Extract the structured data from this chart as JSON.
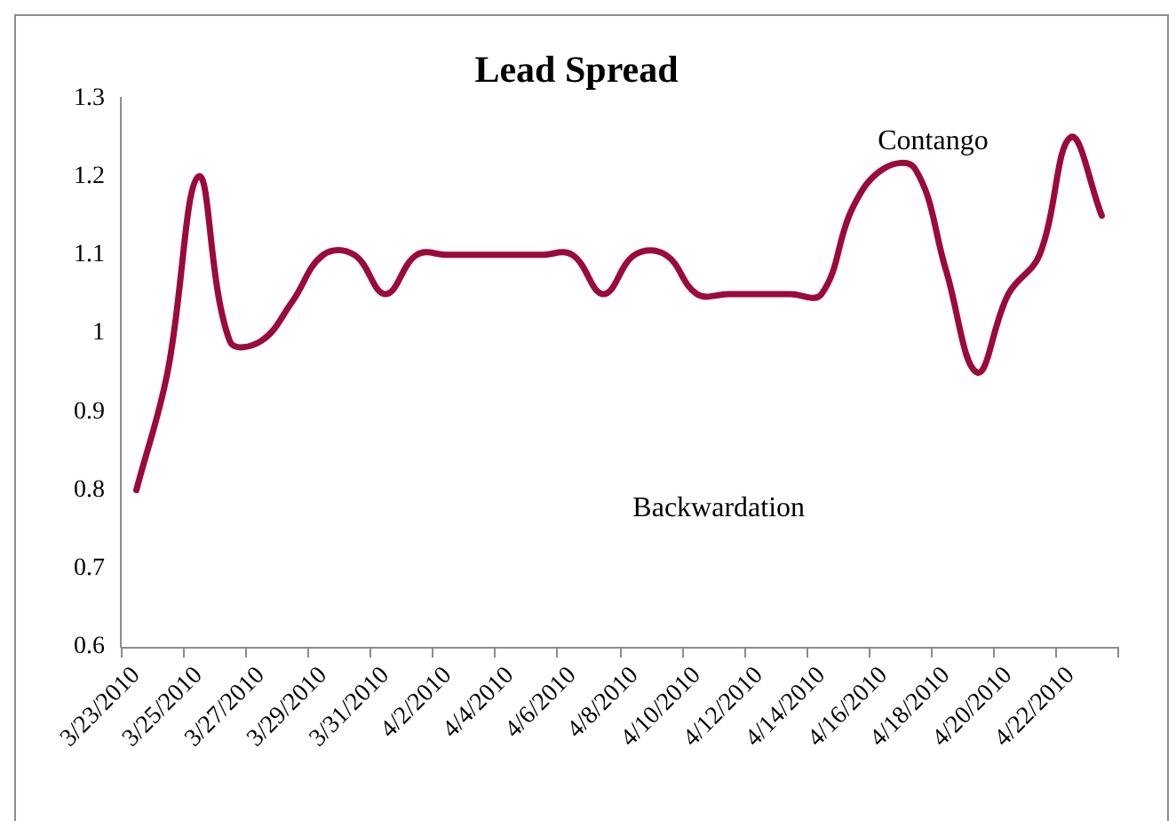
{
  "chart_data": {
    "type": "line",
    "title": "Lead Spread",
    "categories": [
      "3/23/2010",
      null,
      "3/25/2010",
      null,
      "3/27/2010",
      null,
      "3/29/2010",
      null,
      "3/31/2010",
      null,
      "4/2/2010",
      null,
      "4/4/2010",
      null,
      "4/6/2010",
      null,
      "4/8/2010",
      null,
      "4/10/2010",
      null,
      "4/12/2010",
      null,
      "4/14/2010",
      null,
      "4/16/2010",
      null,
      "4/18/2010",
      null,
      "4/20/2010",
      null,
      "4/22/2010",
      null
    ],
    "series": [
      {
        "color": "#9b0a3a",
        "values": [
          0.8,
          0.95,
          1.2,
          0.99,
          0.99,
          1.04,
          1.1,
          1.1,
          1.05,
          1.1,
          1.1,
          1.1,
          1.1,
          1.1,
          1.1,
          1.05,
          1.1,
          1.1,
          1.05,
          1.05,
          1.05,
          1.05,
          1.05,
          1.16,
          1.21,
          1.21,
          1.08,
          0.95,
          1.05,
          1.1,
          1.25,
          1.15
        ]
      }
    ],
    "ylim": [
      0.6,
      1.3
    ],
    "yticks": [
      0.6,
      0.7,
      0.8,
      0.9,
      1,
      1.1,
      1.2,
      1.3
    ],
    "grid": false,
    "legend": false,
    "marker": "none",
    "line_style": "solid",
    "annotations": [
      "Contango",
      "Backwardation"
    ]
  }
}
